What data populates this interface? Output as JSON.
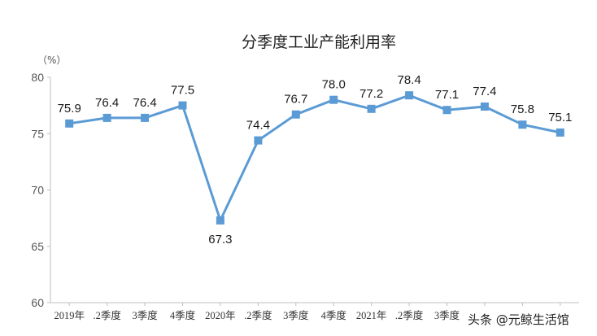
{
  "chart_data": {
    "type": "line",
    "title": "分季度工业产能利用率",
    "unit": "（%）",
    "ylim": [
      60,
      80
    ],
    "yticks": [
      60,
      65,
      70,
      75,
      80
    ],
    "grid": false,
    "categories": [
      "2019年",
      ".2季度",
      "3季度",
      "4季度",
      "2020年",
      ".2季度",
      "3季度",
      "4季度",
      "2021年",
      ".2季度",
      "3季度",
      "",
      "",
      ""
    ],
    "series": [
      {
        "values": [
          75.9,
          76.4,
          76.4,
          77.5,
          67.3,
          74.4,
          76.7,
          78.0,
          77.2,
          78.4,
          77.1,
          77.4,
          75.8,
          75.1
        ],
        "labels": [
          "75.9",
          "76.4",
          "76.4",
          "77.5",
          "67.3",
          "74.4",
          "76.7",
          "78.0",
          "77.2",
          "78.4",
          "77.1",
          "77.4",
          "75.8",
          "75.1"
        ],
        "label_positions": [
          "above",
          "above",
          "above",
          "above",
          "below",
          "above",
          "above",
          "above",
          "above",
          "above",
          "above",
          "above",
          "above",
          "above"
        ],
        "color": "#5B9BD5",
        "marker": "square"
      }
    ]
  },
  "watermark": {
    "text": "头条 @元鲸生活馆"
  }
}
